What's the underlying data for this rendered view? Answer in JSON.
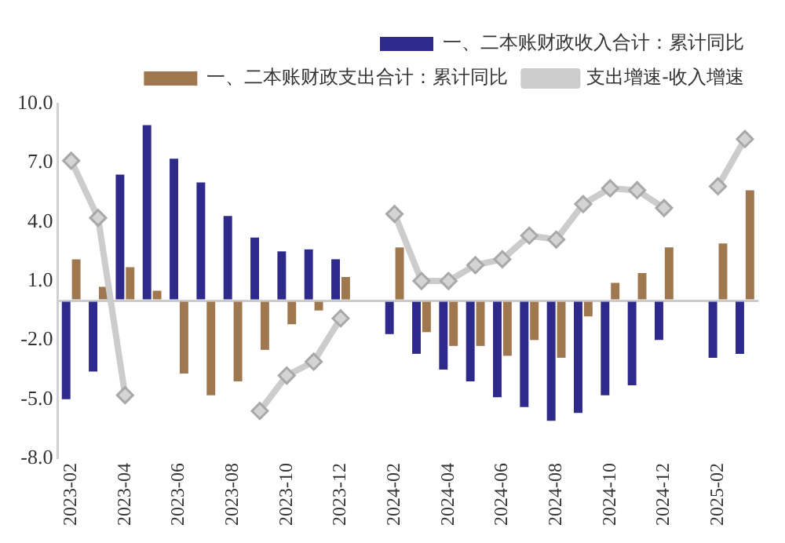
{
  "chart_data": {
    "type": "bar",
    "categories": [
      "2023-02",
      null,
      "2023-04",
      null,
      "2023-06",
      null,
      "2023-08",
      null,
      "2023-10",
      null,
      "2023-12",
      null,
      "2024-02",
      null,
      "2024-04",
      null,
      "2024-06",
      null,
      "2024-08",
      null,
      "2024-10",
      null,
      "2024-12",
      null,
      "2025-02",
      null
    ],
    "series": [
      {
        "name": "一、二本账财政收入合计：累计同比",
        "color": "#2e2a8c",
        "values": [
          -5.0,
          -3.6,
          6.4,
          8.9,
          7.2,
          6.0,
          4.3,
          3.2,
          2.5,
          2.6,
          2.1,
          null,
          -1.7,
          -2.7,
          -3.5,
          -4.1,
          -4.9,
          -5.4,
          -6.1,
          -5.7,
          -4.8,
          -4.3,
          -2.0,
          null,
          -2.9,
          -2.7
        ]
      },
      {
        "name": "一、二本账财政支出合计：累计同比",
        "color": "#a07850",
        "values": [
          2.1,
          0.7,
          1.7,
          0.5,
          -3.7,
          -4.8,
          -4.1,
          -2.5,
          -1.2,
          -0.5,
          1.2,
          null,
          2.7,
          -1.6,
          -2.3,
          -2.3,
          -2.8,
          -2.0,
          -2.9,
          -0.8,
          0.9,
          1.4,
          2.7,
          null,
          2.9,
          5.6
        ]
      },
      {
        "name": "支出增速-收入增速",
        "type": "line",
        "color": "#cccccc",
        "marker": "diamond",
        "values": [
          7.1,
          4.2,
          -4.8,
          null,
          null,
          null,
          null,
          -5.6,
          -3.8,
          -3.1,
          -0.9,
          null,
          4.4,
          1.0,
          1.0,
          1.8,
          2.1,
          3.3,
          3.1,
          4.9,
          5.7,
          5.6,
          4.7,
          null,
          5.8,
          8.2
        ]
      }
    ],
    "ylim": [
      -8,
      10
    ],
    "yticks": [
      {
        "value": -8,
        "label": "-8.0"
      },
      {
        "value": -5,
        "label": "-5.0"
      },
      {
        "value": -2,
        "label": "-2.0"
      },
      {
        "value": 1,
        "label": "1.0"
      },
      {
        "value": 4,
        "label": "4.0"
      },
      {
        "value": 7,
        "label": "7.0"
      },
      {
        "value": 10,
        "label": "10.0"
      }
    ],
    "grid": false,
    "legend": "top right"
  }
}
